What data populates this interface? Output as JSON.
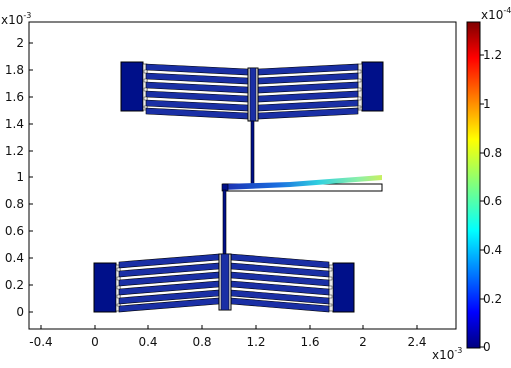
{
  "plot": {
    "x_multiplier_base": "x10",
    "x_multiplier_exp": "-3",
    "y_multiplier_base": "x10",
    "y_multiplier_exp": "-3",
    "x_ticks": [
      "-0.4",
      "0",
      "0.4",
      "0.8",
      "1.2",
      "1.6",
      "2",
      "2.4"
    ],
    "y_ticks": [
      "2",
      "1.8",
      "1.6",
      "1.4",
      "1.2",
      "1",
      "0.8",
      "0.6",
      "0.4",
      "0.2",
      "0"
    ]
  },
  "colorbar": {
    "multiplier_base": "x10",
    "multiplier_exp": "-4",
    "ticks": [
      "1.2",
      "1",
      "0.8",
      "0.6",
      "0.4",
      "0.2",
      "0"
    ],
    "gradient": [
      "#00007f",
      "#0000ff",
      "#00ffff",
      "#7fff7f",
      "#ffff00",
      "#ff0000",
      "#7f0000"
    ]
  },
  "colors": {
    "structure_dark": "#00108a",
    "finger_blue": "#1a2fa5",
    "beam_low": "#1c2db0",
    "beam_high": "#b8f060"
  }
}
